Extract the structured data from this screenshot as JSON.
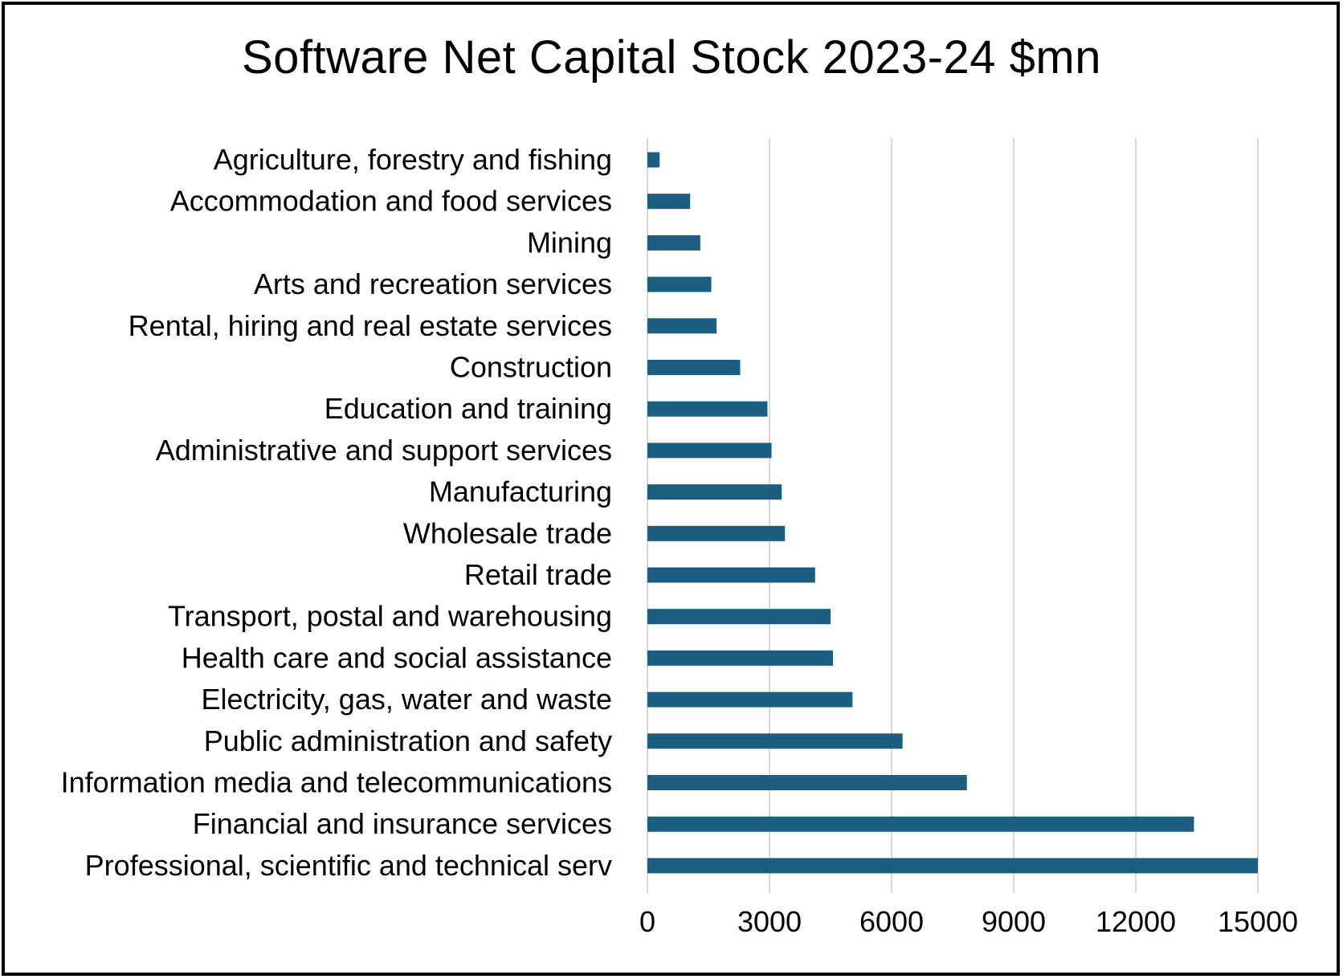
{
  "chart_data": {
    "type": "bar",
    "orientation": "horizontal",
    "title": "Software Net Capital Stock 2023-24 $mn",
    "xlabel": "",
    "ylabel": "",
    "xlim": [
      0,
      15000
    ],
    "x_ticks": [
      "0",
      "3000",
      "6000",
      "9000",
      "12000",
      "15000"
    ],
    "tick_values": [
      0,
      3000,
      6000,
      9000,
      12000,
      15000
    ],
    "grid": true,
    "bar_color": "#1B5E82",
    "gridline_color": "#D9D9D9",
    "categories": [
      "Agriculture, forestry and fishing",
      "Accommodation and food services",
      "Mining",
      "Arts and recreation services",
      "Rental, hiring and real estate services",
      "Construction",
      "Education and training",
      "Administrative and support services",
      "Manufacturing",
      "Wholesale trade",
      "Retail trade",
      "Transport, postal and warehousing",
      "Health care and social assistance",
      "Electricity, gas, water and waste",
      "Public administration and safety",
      "Information media and telecommunications",
      "Financial and insurance services",
      "Professional, scientific and technical serv"
    ],
    "values": [
      300,
      1050,
      1300,
      1570,
      1700,
      2280,
      2950,
      3050,
      3300,
      3380,
      4120,
      4500,
      4560,
      5040,
      6270,
      7850,
      13430,
      15000
    ]
  }
}
